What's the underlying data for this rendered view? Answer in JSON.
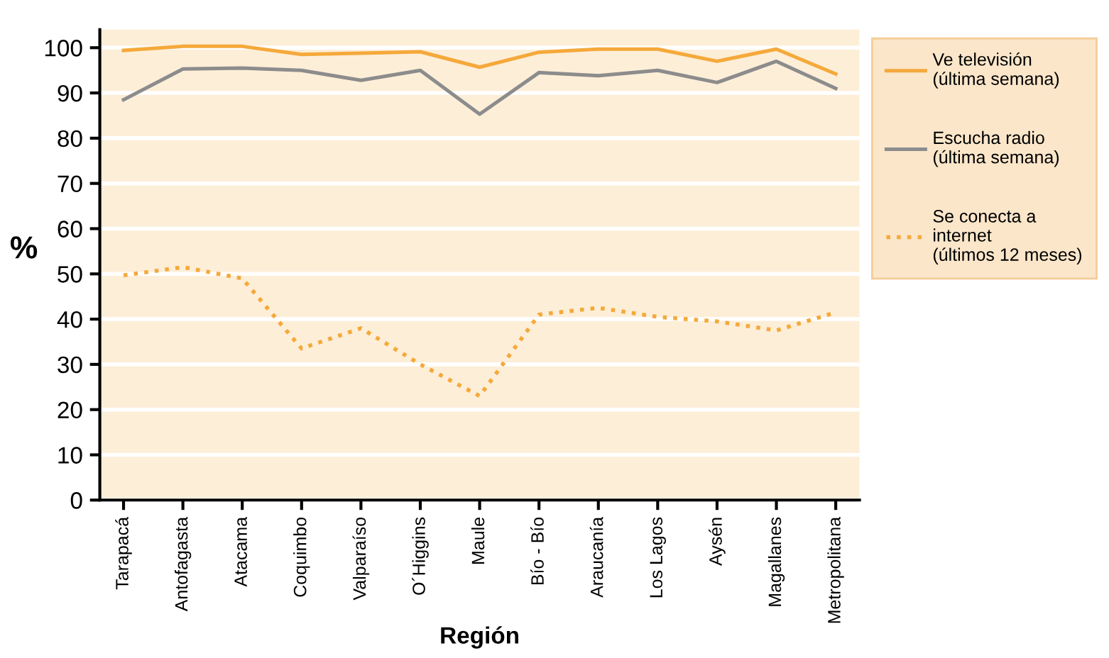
{
  "chart_data": {
    "type": "line",
    "xlabel": "Región",
    "ylabel": "%",
    "categories": [
      "Tarapacá",
      "Antofagasta",
      "Atacama",
      "Coquimbo",
      "Valparaíso",
      "O´Higgins",
      "Maule",
      "Bío - Bío",
      "Araucanía",
      "Los Lagos",
      "Aysén",
      "Magallanes",
      "Metropolitana"
    ],
    "series": [
      {
        "name": "Ve televisión\n(última semana)",
        "color": "#f5a93a",
        "line_style": "solid",
        "values": [
          99.4,
          100.3,
          100.3,
          98.5,
          98.8,
          99.1,
          95.7,
          99.0,
          99.7,
          99.7,
          97.0,
          99.7,
          94.2
        ]
      },
      {
        "name": "Escucha radio\n(última semana)",
        "color": "#8c8c8c",
        "line_style": "solid",
        "values": [
          88.5,
          95.3,
          95.5,
          95.0,
          92.8,
          95.0,
          85.3,
          94.5,
          93.8,
          95.0,
          92.3,
          97.0,
          91.0
        ]
      },
      {
        "name": "Se conecta a\ninternet\n(últimos 12 meses)",
        "color": "#f5a93a",
        "line_style": "dotted",
        "values": [
          49.7,
          51.5,
          49.0,
          33.5,
          38.0,
          30.0,
          23.0,
          41.0,
          42.5,
          40.5,
          39.5,
          37.5,
          41.5
        ]
      }
    ],
    "ylim": [
      0,
      104
    ],
    "yticks": [
      0,
      10,
      20,
      30,
      40,
      50,
      60,
      70,
      80,
      90,
      100
    ],
    "grid": "y",
    "legend": "right"
  }
}
